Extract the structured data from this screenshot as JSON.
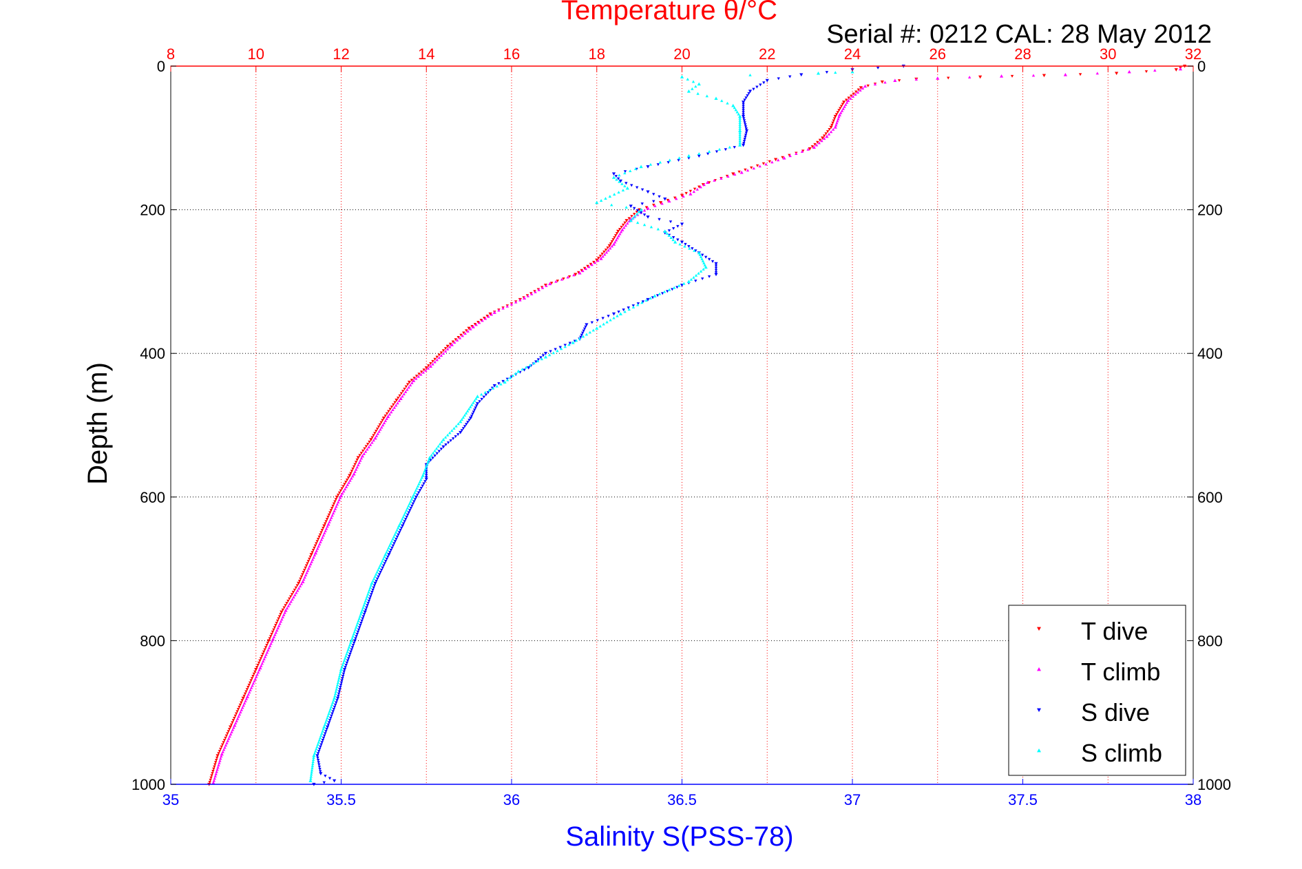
{
  "chart_data": {
    "type": "scatter",
    "title": "Temperature θ/°C",
    "annotation": "Serial #: 0212  CAL: 28 May 2012",
    "ylabel": "Depth (m)",
    "xlabel": "Salinity S(PSS-78)",
    "y_range": [
      0,
      1000
    ],
    "y_reversed": true,
    "y_ticks": [
      0,
      200,
      400,
      600,
      800,
      1000
    ],
    "salinity_axis": {
      "range": [
        35,
        38
      ],
      "ticks": [
        35,
        35.5,
        36,
        36.5,
        37,
        37.5,
        38
      ],
      "color": "#0000ff"
    },
    "temperature_axis": {
      "range": [
        8,
        32
      ],
      "ticks": [
        8,
        10,
        12,
        14,
        16,
        18,
        20,
        22,
        24,
        26,
        28,
        30,
        32
      ],
      "color": "#ff0000"
    },
    "grid": true,
    "legend": {
      "placement": "bottom-right"
    },
    "series": [
      {
        "name": "T dive",
        "axis": "temperature",
        "color": "#ff0000",
        "marker": "triangle-down",
        "points": [
          [
            31.8,
            0
          ],
          [
            31.6,
            5
          ],
          [
            30.2,
            10
          ],
          [
            28.5,
            13
          ],
          [
            27.0,
            15
          ],
          [
            25.5,
            18
          ],
          [
            24.7,
            22
          ],
          [
            24.2,
            30
          ],
          [
            23.8,
            50
          ],
          [
            23.6,
            70
          ],
          [
            23.5,
            85
          ],
          [
            23.3,
            100
          ],
          [
            23.0,
            115
          ],
          [
            22.2,
            130
          ],
          [
            21.2,
            150
          ],
          [
            20.5,
            165
          ],
          [
            20.0,
            180
          ],
          [
            19.5,
            190
          ],
          [
            19.0,
            200
          ],
          [
            18.7,
            215
          ],
          [
            18.5,
            230
          ],
          [
            18.3,
            250
          ],
          [
            18.0,
            270
          ],
          [
            17.5,
            290
          ],
          [
            16.8,
            305
          ],
          [
            16.2,
            325
          ],
          [
            15.5,
            345
          ],
          [
            15.0,
            365
          ],
          [
            14.5,
            390
          ],
          [
            14.0,
            420
          ],
          [
            13.6,
            440
          ],
          [
            13.3,
            465
          ],
          [
            13.0,
            490
          ],
          [
            12.7,
            520
          ],
          [
            12.4,
            545
          ],
          [
            12.2,
            570
          ],
          [
            11.9,
            600
          ],
          [
            11.6,
            640
          ],
          [
            11.3,
            680
          ],
          [
            11.0,
            720
          ],
          [
            10.6,
            760
          ],
          [
            10.3,
            800
          ],
          [
            10.0,
            840
          ],
          [
            9.7,
            880
          ],
          [
            9.4,
            920
          ],
          [
            9.1,
            960
          ],
          [
            8.9,
            1000
          ]
        ]
      },
      {
        "name": "T climb",
        "axis": "temperature",
        "color": "#ff00ff",
        "marker": "triangle-up",
        "points": [
          [
            31.7,
            4
          ],
          [
            30.5,
            8
          ],
          [
            29.0,
            12
          ],
          [
            27.5,
            14
          ],
          [
            26.0,
            17
          ],
          [
            25.0,
            20
          ],
          [
            24.3,
            28
          ],
          [
            23.9,
            48
          ],
          [
            23.7,
            68
          ],
          [
            23.6,
            85
          ],
          [
            23.4,
            98
          ],
          [
            23.1,
            113
          ],
          [
            22.4,
            128
          ],
          [
            21.4,
            148
          ],
          [
            20.6,
            162
          ],
          [
            20.2,
            178
          ],
          [
            19.7,
            188
          ],
          [
            19.2,
            198
          ],
          [
            18.8,
            213
          ],
          [
            18.6,
            228
          ],
          [
            18.4,
            248
          ],
          [
            18.1,
            268
          ],
          [
            17.6,
            288
          ],
          [
            16.9,
            303
          ],
          [
            16.3,
            323
          ],
          [
            15.6,
            343
          ],
          [
            15.1,
            363
          ],
          [
            14.6,
            388
          ],
          [
            14.1,
            418
          ],
          [
            13.7,
            438
          ],
          [
            13.4,
            463
          ],
          [
            13.1,
            488
          ],
          [
            12.8,
            518
          ],
          [
            12.5,
            543
          ],
          [
            12.3,
            568
          ],
          [
            12.0,
            598
          ],
          [
            11.7,
            638
          ],
          [
            11.4,
            678
          ],
          [
            11.1,
            718
          ],
          [
            10.7,
            758
          ],
          [
            10.4,
            798
          ],
          [
            10.1,
            838
          ],
          [
            9.8,
            878
          ],
          [
            9.5,
            918
          ],
          [
            9.2,
            958
          ],
          [
            9.0,
            998
          ]
        ]
      },
      {
        "name": "S dive",
        "axis": "salinity",
        "color": "#0000ff",
        "marker": "triangle-down",
        "points": [
          [
            37.15,
            0
          ],
          [
            37.0,
            5
          ],
          [
            36.85,
            12
          ],
          [
            36.75,
            20
          ],
          [
            36.7,
            35
          ],
          [
            36.68,
            50
          ],
          [
            36.68,
            70
          ],
          [
            36.69,
            90
          ],
          [
            36.68,
            110
          ],
          [
            36.55,
            125
          ],
          [
            36.4,
            140
          ],
          [
            36.3,
            150
          ],
          [
            36.32,
            160
          ],
          [
            36.4,
            175
          ],
          [
            36.45,
            185
          ],
          [
            36.35,
            195
          ],
          [
            36.4,
            210
          ],
          [
            36.5,
            220
          ],
          [
            36.45,
            232
          ],
          [
            36.5,
            245
          ],
          [
            36.55,
            260
          ],
          [
            36.6,
            275
          ],
          [
            36.6,
            290
          ],
          [
            36.5,
            305
          ],
          [
            36.4,
            325
          ],
          [
            36.3,
            345
          ],
          [
            36.22,
            360
          ],
          [
            36.2,
            380
          ],
          [
            36.1,
            400
          ],
          [
            36.05,
            420
          ],
          [
            35.95,
            445
          ],
          [
            35.9,
            470
          ],
          [
            35.88,
            490
          ],
          [
            35.85,
            510
          ],
          [
            35.8,
            530
          ],
          [
            35.75,
            555
          ],
          [
            35.75,
            575
          ],
          [
            35.72,
            600
          ],
          [
            35.68,
            640
          ],
          [
            35.64,
            680
          ],
          [
            35.6,
            720
          ],
          [
            35.57,
            760
          ],
          [
            35.54,
            800
          ],
          [
            35.51,
            840
          ],
          [
            35.49,
            880
          ],
          [
            35.46,
            920
          ],
          [
            35.43,
            960
          ],
          [
            35.44,
            985
          ],
          [
            35.48,
            995
          ],
          [
            35.42,
            1000
          ]
        ]
      },
      {
        "name": "S climb",
        "axis": "salinity",
        "color": "#00ffff",
        "marker": "triangle-up",
        "points": [
          [
            37.0,
            8
          ],
          [
            36.9,
            10
          ],
          [
            36.5,
            15
          ],
          [
            36.55,
            25
          ],
          [
            36.52,
            35
          ],
          [
            36.6,
            45
          ],
          [
            36.65,
            55
          ],
          [
            36.67,
            70
          ],
          [
            36.67,
            90
          ],
          [
            36.67,
            110
          ],
          [
            36.52,
            125
          ],
          [
            36.38,
            140
          ],
          [
            36.3,
            155
          ],
          [
            36.34,
            170
          ],
          [
            36.25,
            190
          ],
          [
            36.38,
            200
          ],
          [
            36.35,
            215
          ],
          [
            36.45,
            230
          ],
          [
            36.48,
            245
          ],
          [
            36.55,
            260
          ],
          [
            36.57,
            280
          ],
          [
            36.52,
            300
          ],
          [
            36.42,
            320
          ],
          [
            36.32,
            345
          ],
          [
            36.25,
            365
          ],
          [
            36.18,
            385
          ],
          [
            36.1,
            405
          ],
          [
            36.02,
            425
          ],
          [
            35.98,
            440
          ],
          [
            35.9,
            460
          ],
          [
            35.85,
            495
          ],
          [
            35.8,
            520
          ],
          [
            35.76,
            545
          ],
          [
            35.74,
            570
          ],
          [
            35.71,
            600
          ],
          [
            35.67,
            640
          ],
          [
            35.63,
            680
          ],
          [
            35.59,
            720
          ],
          [
            35.56,
            760
          ],
          [
            35.53,
            800
          ],
          [
            35.5,
            840
          ],
          [
            35.48,
            880
          ],
          [
            35.45,
            920
          ],
          [
            35.42,
            960
          ],
          [
            35.41,
            995
          ]
        ]
      }
    ]
  }
}
